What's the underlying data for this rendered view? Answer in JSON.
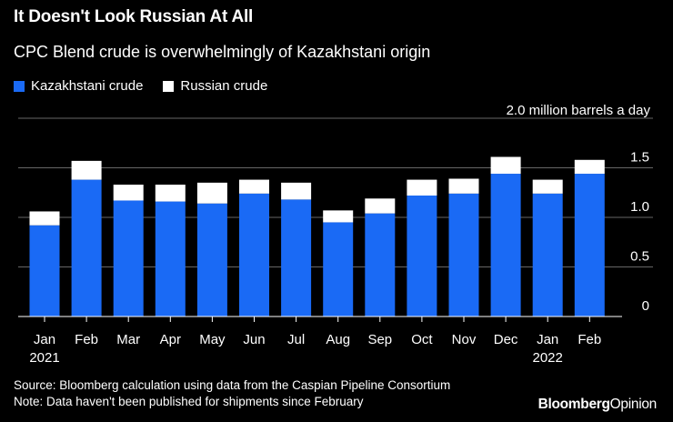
{
  "header": {
    "title": "It Doesn't Look Russian At All",
    "subtitle": "CPC Blend crude is overwhelmingly of Kazakhstani origin"
  },
  "legend": {
    "items": [
      {
        "label": "Kazakhstani crude",
        "color": "#1a6af5"
      },
      {
        "label": "Russian crude",
        "color": "#ffffff"
      }
    ]
  },
  "colors": {
    "background": "#000000",
    "kazakh": "#1a6af5",
    "russian": "#ffffff",
    "grid": "#666666"
  },
  "chart_data": {
    "type": "bar",
    "stacked": true,
    "title": "It Doesn't Look Russian At All",
    "subtitle": "CPC Blend crude is overwhelmingly of Kazakhstani origin",
    "unit_label": "2.0 million barrels a day",
    "ylim": [
      0,
      2.0
    ],
    "yticks": [
      {
        "value": 1.5,
        "label": "1.5"
      },
      {
        "value": 1.0,
        "label": "1.0"
      },
      {
        "value": 0.5,
        "label": "0.5"
      },
      {
        "value": 0,
        "label": "0"
      }
    ],
    "y_axis_position": "right",
    "categories": [
      "Jan",
      "Feb",
      "Mar",
      "Apr",
      "May",
      "Jun",
      "Jul",
      "Aug",
      "Sep",
      "Oct",
      "Nov",
      "Dec",
      "Jan",
      "Feb"
    ],
    "year_labels": [
      {
        "index": 0,
        "label": "2021"
      },
      {
        "index": 12,
        "label": "2022"
      }
    ],
    "series": [
      {
        "name": "Kazakhstani crude",
        "values": [
          0.92,
          1.38,
          1.17,
          1.16,
          1.14,
          1.24,
          1.18,
          0.95,
          1.04,
          1.22,
          1.24,
          1.44,
          1.24,
          1.44
        ]
      },
      {
        "name": "Russian crude",
        "values": [
          0.14,
          0.19,
          0.16,
          0.17,
          0.21,
          0.14,
          0.17,
          0.12,
          0.15,
          0.16,
          0.15,
          0.17,
          0.14,
          0.14
        ]
      }
    ]
  },
  "footer": {
    "source": "Source: Bloomberg calculation using data from the Caspian Pipeline Consortium",
    "note": "Note: Data haven't been published for shipments since February"
  },
  "brand": {
    "part1": "Bloomberg",
    "part2": "Opinion"
  }
}
